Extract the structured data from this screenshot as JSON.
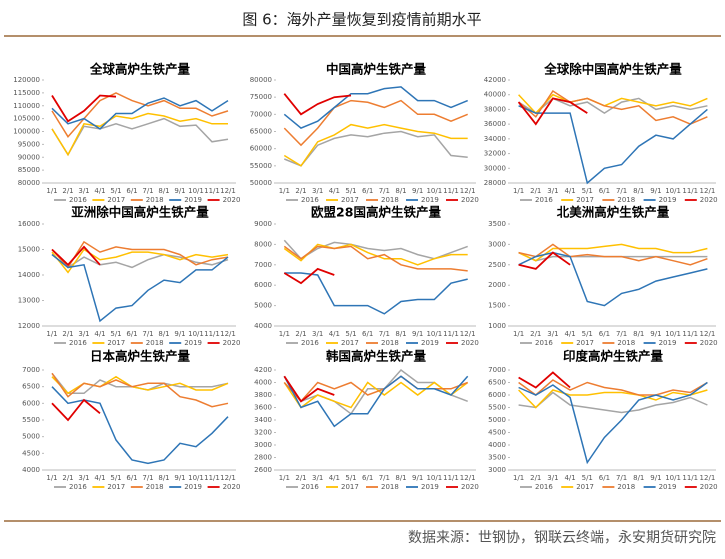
{
  "title": "图 6：海外产量恢复到疫情前期水平",
  "source": "数据来源：世钢协，钢联云终端，永安期货研究院",
  "chart_data": [
    {
      "type": "line",
      "title": "全球高炉生铁产量",
      "categories": [
        "1/1",
        "2/1",
        "3/1",
        "4/1",
        "5/1",
        "6/1",
        "7/1",
        "8/1",
        "9/1",
        "10/1",
        "11/1",
        "12/1"
      ],
      "ylim": [
        80000,
        120000
      ],
      "yticks": [
        80000,
        85000,
        90000,
        95000,
        100000,
        105000,
        110000,
        115000,
        120000
      ],
      "series": [
        {
          "name": "2016",
          "color": "#a5a5a5",
          "values": [
            101000,
            91000,
            102000,
            101000,
            103000,
            101000,
            103000,
            105000,
            102000,
            102500,
            96000,
            97000
          ]
        },
        {
          "name": "2017",
          "color": "#ffc000",
          "values": [
            101000,
            91000,
            103000,
            102000,
            106000,
            105000,
            107000,
            106000,
            104000,
            105000,
            103000,
            103000
          ]
        },
        {
          "name": "2018",
          "color": "#ed7d31",
          "values": [
            108000,
            98000,
            105000,
            112000,
            115000,
            112000,
            110000,
            112000,
            109000,
            109000,
            106000,
            108000
          ]
        },
        {
          "name": "2019",
          "color": "#2e75b6",
          "values": [
            109000,
            103000,
            105000,
            101000,
            107000,
            107000,
            111000,
            113000,
            110000,
            112000,
            108000,
            112000
          ]
        },
        {
          "name": "2020",
          "color": "#e00000",
          "values": [
            114000,
            104000,
            108000,
            114000,
            113500,
            null,
            null,
            null,
            null,
            null,
            null,
            null
          ]
        }
      ]
    },
    {
      "type": "line",
      "title": "中国高炉生铁产量",
      "categories": [
        "1/1",
        "2/1",
        "3/1",
        "4/1",
        "5/1",
        "6/1",
        "7/1",
        "8/1",
        "9/1",
        "10/1",
        "11/1",
        "12/1"
      ],
      "ylim": [
        50000,
        80000
      ],
      "yticks": [
        50000,
        55000,
        60000,
        65000,
        70000,
        75000,
        80000
      ],
      "series": [
        {
          "name": "2016",
          "color": "#a5a5a5",
          "values": [
            57000,
            55000,
            61000,
            63000,
            64000,
            63500,
            64500,
            65000,
            63500,
            64000,
            58000,
            57500
          ]
        },
        {
          "name": "2017",
          "color": "#ffc000",
          "values": [
            58000,
            55000,
            62000,
            64000,
            67000,
            66000,
            67000,
            66000,
            65000,
            64500,
            63000,
            63000
          ]
        },
        {
          "name": "2018",
          "color": "#ed7d31",
          "values": [
            66000,
            61000,
            66000,
            72000,
            74000,
            73500,
            72000,
            74000,
            70000,
            70000,
            68000,
            70000
          ]
        },
        {
          "name": "2019",
          "color": "#2e75b6",
          "values": [
            70000,
            66000,
            68000,
            72000,
            76000,
            76000,
            77500,
            78000,
            74000,
            74000,
            72000,
            74000
          ]
        },
        {
          "name": "2020",
          "color": "#e00000",
          "values": [
            76000,
            70000,
            73000,
            75000,
            75500,
            null,
            null,
            null,
            null,
            null,
            null,
            null
          ]
        }
      ]
    },
    {
      "type": "line",
      "title": "全球除中国高炉生铁产量",
      "categories": [
        "1/1",
        "2/1",
        "3/1",
        "4/1",
        "5/1",
        "6/1",
        "7/1",
        "8/1",
        "9/1",
        "10/1",
        "11/1",
        "12/1"
      ],
      "ylim": [
        28000,
        42000
      ],
      "yticks": [
        28000,
        30000,
        32000,
        34000,
        36000,
        38000,
        40000,
        42000
      ],
      "series": [
        {
          "name": "2016",
          "color": "#a5a5a5",
          "values": [
            39000,
            37500,
            39500,
            38500,
            39000,
            37500,
            39000,
            39500,
            38000,
            38500,
            38000,
            38500
          ]
        },
        {
          "name": "2017",
          "color": "#ffc000",
          "values": [
            40000,
            37500,
            40000,
            39000,
            39500,
            38500,
            39500,
            39000,
            38500,
            39000,
            38500,
            39500
          ]
        },
        {
          "name": "2018",
          "color": "#ed7d31",
          "values": [
            39000,
            37000,
            40500,
            39000,
            39500,
            38500,
            38000,
            38500,
            36500,
            37000,
            36000,
            37000
          ]
        },
        {
          "name": "2019",
          "color": "#2e75b6",
          "values": [
            38500,
            37500,
            37500,
            37500,
            28000,
            30000,
            30500,
            33000,
            34500,
            34000,
            36000,
            38000
          ]
        },
        {
          "name": "2020",
          "color": "#e00000",
          "values": [
            39000,
            36000,
            39500,
            39000,
            37500,
            null,
            null,
            null,
            null,
            null,
            null,
            null
          ]
        }
      ]
    },
    {
      "type": "line",
      "title": "亚洲除中国高炉生铁产量",
      "categories": [
        "1/1",
        "2/1",
        "3/1",
        "4/1",
        "5/1",
        "6/1",
        "7/1",
        "8/1",
        "9/1",
        "10/1",
        "11/1",
        "12/1"
      ],
      "ylim": [
        12000,
        16000
      ],
      "yticks": [
        12000,
        13000,
        14000,
        15000,
        16000
      ],
      "series": [
        {
          "name": "2016",
          "color": "#a5a5a5",
          "values": [
            14800,
            14300,
            14700,
            14400,
            14500,
            14300,
            14600,
            14800,
            14700,
            14500,
            14400,
            14600
          ]
        },
        {
          "name": "2017",
          "color": "#ffc000",
          "values": [
            14900,
            14100,
            15000,
            14600,
            14700,
            14900,
            14900,
            14800,
            14600,
            14800,
            14700,
            14800
          ]
        },
        {
          "name": "2018",
          "color": "#ed7d31",
          "values": [
            15000,
            14300,
            15300,
            14900,
            15100,
            15000,
            15000,
            15000,
            14800,
            14400,
            14600,
            14700
          ]
        },
        {
          "name": "2019",
          "color": "#2e75b6",
          "values": [
            14800,
            14300,
            14400,
            12200,
            12700,
            12800,
            13400,
            13800,
            13700,
            14200,
            14200,
            14700
          ]
        },
        {
          "name": "2020",
          "color": "#e00000",
          "values": [
            15000,
            14400,
            15100,
            14400,
            null,
            null,
            null,
            null,
            null,
            null,
            null,
            null
          ]
        }
      ]
    },
    {
      "type": "line",
      "title": "欧盟28国高炉生铁产量",
      "categories": [
        "1/1",
        "2/1",
        "3/1",
        "4/1",
        "5/1",
        "6/1",
        "7/1",
        "8/1",
        "9/1",
        "10/1",
        "11/1",
        "12/1"
      ],
      "ylim": [
        4000,
        9000
      ],
      "yticks": [
        4000,
        5000,
        6000,
        7000,
        8000,
        9000
      ],
      "series": [
        {
          "name": "2016",
          "color": "#a5a5a5",
          "values": [
            8200,
            7300,
            7800,
            8100,
            8000,
            7800,
            7700,
            7800,
            7500,
            7300,
            7600,
            7900
          ]
        },
        {
          "name": "2017",
          "color": "#ffc000",
          "values": [
            7800,
            7200,
            8000,
            7800,
            8000,
            7600,
            7300,
            7300,
            7000,
            7300,
            7500,
            7500
          ]
        },
        {
          "name": "2018",
          "color": "#ed7d31",
          "values": [
            7900,
            7300,
            7900,
            7800,
            7900,
            7300,
            7500,
            7000,
            6800,
            6800,
            6800,
            6700
          ]
        },
        {
          "name": "2019",
          "color": "#2e75b6",
          "values": [
            6600,
            6600,
            6500,
            5000,
            5000,
            5000,
            4600,
            5200,
            5300,
            5300,
            6100,
            6300
          ]
        },
        {
          "name": "2020",
          "color": "#e00000",
          "values": [
            6600,
            6100,
            6800,
            6500,
            null,
            null,
            null,
            null,
            null,
            null,
            null,
            null
          ]
        }
      ]
    },
    {
      "type": "line",
      "title": "北美洲高炉生铁产量",
      "categories": [
        "1/1",
        "2/1",
        "3/1",
        "4/1",
        "5/1",
        "6/1",
        "7/1",
        "8/1",
        "9/1",
        "10/1",
        "11/1",
        "12/1"
      ],
      "ylim": [
        1000,
        3500
      ],
      "yticks": [
        1000,
        1500,
        2000,
        2500,
        3000,
        3500
      ],
      "series": [
        {
          "name": "2016",
          "color": "#a5a5a5",
          "values": [
            2800,
            2600,
            2700,
            2700,
            2700,
            2700,
            2700,
            2700,
            2700,
            2700,
            2700,
            2700
          ]
        },
        {
          "name": "2017",
          "color": "#ffc000",
          "values": [
            2800,
            2600,
            2900,
            2900,
            2900,
            2950,
            3000,
            2900,
            2900,
            2800,
            2800,
            2900
          ]
        },
        {
          "name": "2018",
          "color": "#ed7d31",
          "values": [
            2800,
            2700,
            3000,
            2700,
            2750,
            2700,
            2700,
            2600,
            2700,
            2600,
            2500,
            2650
          ]
        },
        {
          "name": "2019",
          "color": "#2e75b6",
          "values": [
            2500,
            2700,
            2800,
            2700,
            1600,
            1500,
            1800,
            1900,
            2100,
            2200,
            2300,
            2400
          ]
        },
        {
          "name": "2020",
          "color": "#e00000",
          "values": [
            2500,
            2400,
            2800,
            2500,
            null,
            null,
            null,
            null,
            null,
            null,
            null,
            null
          ]
        }
      ]
    },
    {
      "type": "line",
      "title": "日本高炉生铁产量",
      "categories": [
        "1/1",
        "2/1",
        "3/1",
        "4/1",
        "5/1",
        "6/1",
        "7/1",
        "8/1",
        "9/1",
        "10/1",
        "11/1",
        "12/1"
      ],
      "ylim": [
        4000,
        7000
      ],
      "yticks": [
        4000,
        4500,
        5000,
        5500,
        6000,
        6500,
        7000
      ],
      "series": [
        {
          "name": "2016",
          "color": "#a5a5a5",
          "values": [
            6900,
            6300,
            6300,
            6700,
            6500,
            6500,
            6400,
            6600,
            6500,
            6500,
            6500,
            6600
          ]
        },
        {
          "name": "2017",
          "color": "#ffc000",
          "values": [
            6800,
            6300,
            6600,
            6500,
            6800,
            6500,
            6400,
            6500,
            6600,
            6400,
            6400,
            6600
          ]
        },
        {
          "name": "2018",
          "color": "#ed7d31",
          "values": [
            6900,
            6200,
            6600,
            6500,
            6700,
            6500,
            6600,
            6600,
            6200,
            6100,
            5900,
            6000
          ]
        },
        {
          "name": "2019",
          "color": "#2e75b6",
          "values": [
            6500,
            6000,
            6100,
            6000,
            4900,
            4300,
            4200,
            4300,
            4800,
            4700,
            5100,
            5600
          ]
        },
        {
          "name": "2020",
          "color": "#e00000",
          "values": [
            6000,
            5500,
            6100,
            5700,
            null,
            null,
            null,
            null,
            null,
            null,
            null,
            null
          ]
        }
      ]
    },
    {
      "type": "line",
      "title": "韩国高炉生铁产量",
      "categories": [
        "1/1",
        "2/1",
        "3/1",
        "4/1",
        "5/1",
        "6/1",
        "7/1",
        "8/1",
        "9/1",
        "10/1",
        "11/1",
        "12/1"
      ],
      "ylim": [
        2600,
        4200
      ],
      "yticks": [
        2600,
        2800,
        3000,
        3200,
        3400,
        3600,
        3800,
        4000,
        4200
      ],
      "series": [
        {
          "name": "2016",
          "color": "#a5a5a5",
          "values": [
            4100,
            3700,
            3800,
            3700,
            3500,
            3900,
            3900,
            4200,
            4000,
            4000,
            3800,
            3700
          ]
        },
        {
          "name": "2017",
          "color": "#ffc000",
          "values": [
            4000,
            3600,
            3800,
            3700,
            3600,
            4000,
            3800,
            4000,
            3800,
            4000,
            3800,
            4000
          ]
        },
        {
          "name": "2018",
          "color": "#ed7d31",
          "values": [
            4000,
            3700,
            4000,
            3900,
            4000,
            3800,
            3900,
            4100,
            3900,
            3900,
            3900,
            4000
          ]
        },
        {
          "name": "2019",
          "color": "#2e75b6",
          "values": [
            4100,
            3600,
            3700,
            3300,
            3500,
            3500,
            3900,
            4100,
            3900,
            3900,
            3800,
            4100
          ]
        },
        {
          "name": "2020",
          "color": "#e00000",
          "values": [
            4100,
            3700,
            3900,
            3800,
            null,
            null,
            null,
            null,
            null,
            null,
            null,
            null
          ]
        }
      ]
    },
    {
      "type": "line",
      "title": "印度高炉生铁产量",
      "categories": [
        "1/1",
        "2/1",
        "3/1",
        "4/1",
        "5/1",
        "6/1",
        "7/1",
        "8/1",
        "9/1",
        "10/1",
        "11/1",
        "12/1"
      ],
      "ylim": [
        3000,
        7000
      ],
      "yticks": [
        3000,
        3500,
        4000,
        4500,
        5000,
        5500,
        6000,
        6500,
        7000
      ],
      "series": [
        {
          "name": "2016",
          "color": "#a5a5a5",
          "values": [
            5600,
            5500,
            6100,
            5600,
            5500,
            5400,
            5300,
            5400,
            5600,
            5700,
            5900,
            5600
          ]
        },
        {
          "name": "2017",
          "color": "#ffc000",
          "values": [
            6200,
            5500,
            6200,
            6000,
            6000,
            6100,
            6100,
            6000,
            5800,
            6100,
            6000,
            6200
          ]
        },
        {
          "name": "2018",
          "color": "#ed7d31",
          "values": [
            6500,
            6000,
            6600,
            6200,
            6500,
            6300,
            6200,
            6000,
            6000,
            6200,
            6100,
            6500
          ]
        },
        {
          "name": "2019",
          "color": "#2e75b6",
          "values": [
            6300,
            6000,
            6400,
            5900,
            3300,
            4300,
            5000,
            5800,
            6000,
            5800,
            6000,
            6500
          ]
        },
        {
          "name": "2020",
          "color": "#e00000",
          "values": [
            6700,
            6300,
            6900,
            6300,
            null,
            null,
            null,
            null,
            null,
            null,
            null,
            null
          ]
        }
      ]
    }
  ]
}
